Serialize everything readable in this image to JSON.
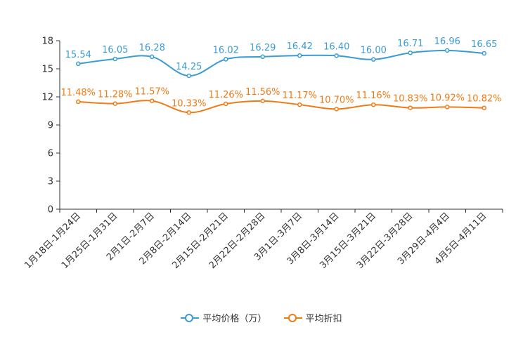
{
  "chart_data": {
    "type": "line",
    "title": "",
    "xlabel": "",
    "ylabel": "",
    "ylim": [
      0,
      18
    ],
    "yticks": [
      0,
      3,
      6,
      9,
      12,
      15,
      18
    ],
    "categories": [
      "1月18日-1月24日",
      "1月25日-1月31日",
      "2月1日-2月7日",
      "2月8日-2月14日",
      "2月15日-2月21日",
      "2月22日-2月28日",
      "3月1日-3月7日",
      "3月8日-3月14日",
      "3月15日-3月21日",
      "3月22日-3月28日",
      "3月29日-4月4日",
      "4月5日-4月11日"
    ],
    "series": [
      {
        "name": "平均价格（万）",
        "color": "#3a9bd5",
        "values": [
          15.54,
          16.05,
          16.28,
          14.25,
          16.02,
          16.29,
          16.42,
          16.4,
          16.0,
          16.71,
          16.96,
          16.65
        ],
        "labels": [
          "15.54",
          "16.05",
          "16.28",
          "14.25",
          "16.02",
          "16.29",
          "16.42",
          "16.40",
          "16.00",
          "16.71",
          "16.96",
          "16.65"
        ]
      },
      {
        "name": "平均折扣",
        "color": "#f07a14",
        "values": [
          11.48,
          11.28,
          11.57,
          10.33,
          11.26,
          11.56,
          11.17,
          10.7,
          11.16,
          10.83,
          10.92,
          10.82
        ],
        "labels": [
          "11.48%",
          "11.28%",
          "11.57%",
          "10.33%",
          "11.26%",
          "11.56%",
          "11.17%",
          "10.70%",
          "11.16%",
          "10.83%",
          "10.92%",
          "10.82%"
        ]
      }
    ]
  }
}
